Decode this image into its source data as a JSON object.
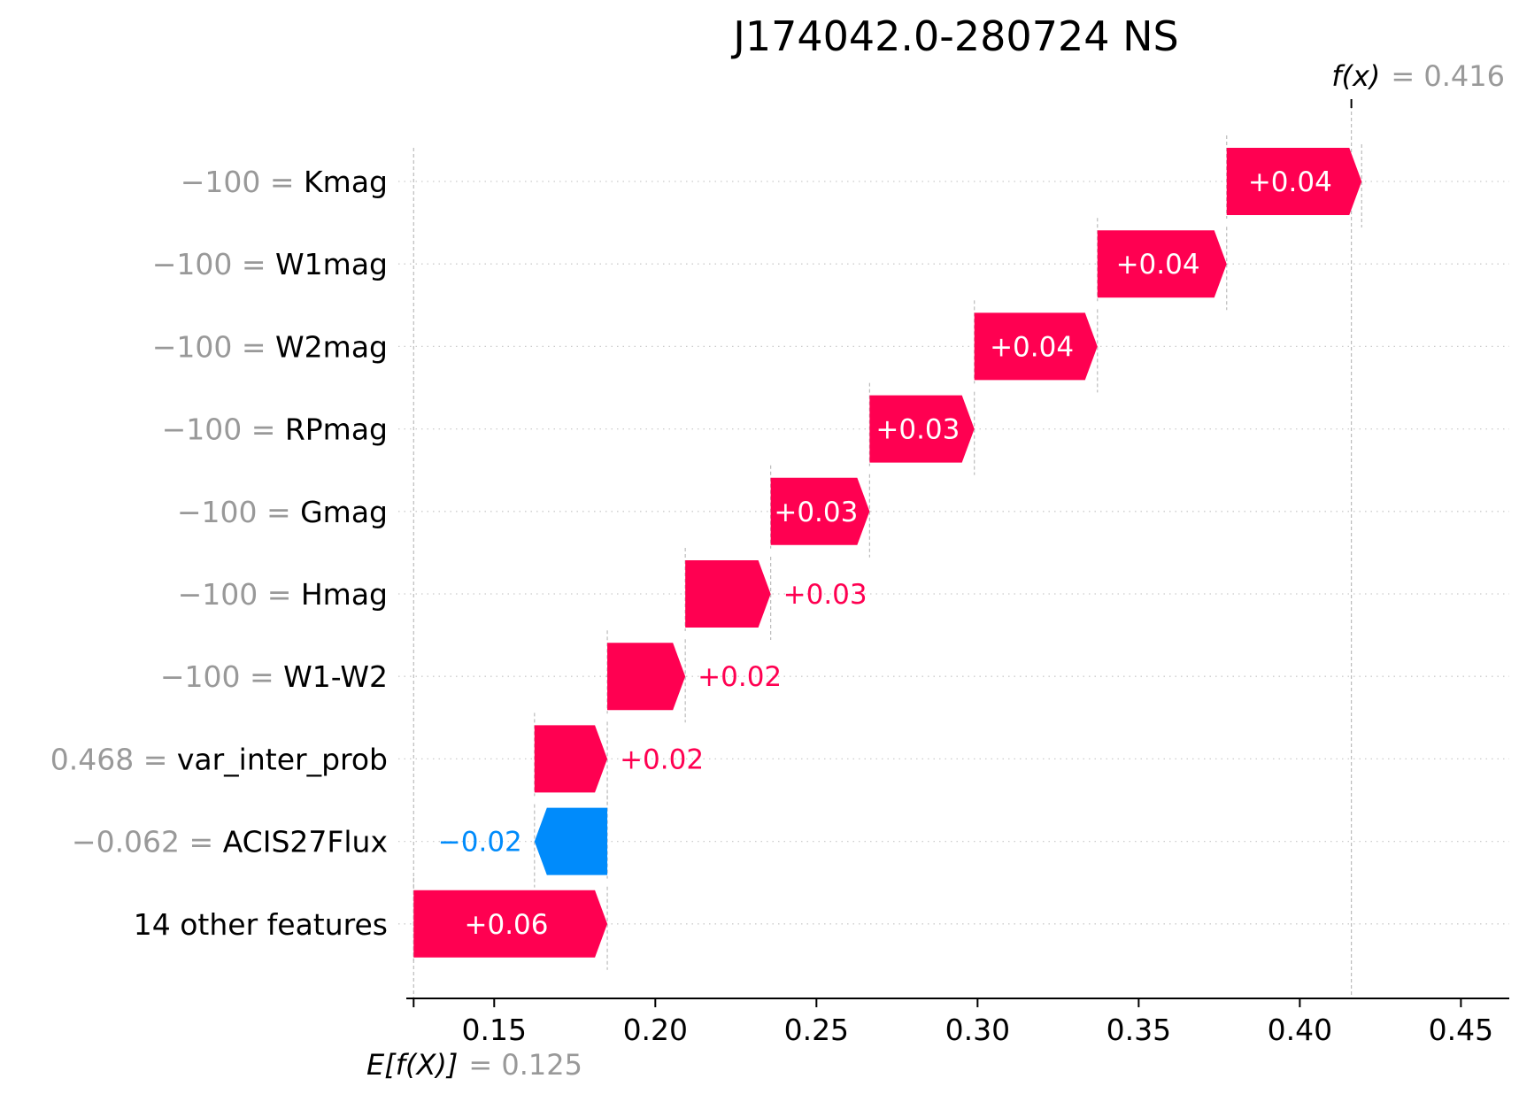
{
  "chart_data": {
    "type": "waterfall",
    "title": "J174042.0-280724 NS",
    "base_value": 0.125,
    "output_value": 0.416,
    "base_label": "E[f(X)]",
    "base_value_label": "= 0.125",
    "output_label": "f(x)",
    "output_value_label": "= 0.416",
    "xlim": [
      0.123,
      0.465
    ],
    "xticks": [
      0.15,
      0.2,
      0.25,
      0.3,
      0.35,
      0.4,
      0.45
    ],
    "xtick_labels": [
      "0.15",
      "0.20",
      "0.25",
      "0.30",
      "0.35",
      "0.40",
      "0.45"
    ],
    "grid": "horizontal dotted row lines",
    "colors": {
      "positive": "#ff0051",
      "negative": "#008bfb",
      "muted": "#999999"
    },
    "features": [
      {
        "value": "−100",
        "name": "Kmag",
        "shap": 0.0419,
        "label": "+0.04"
      },
      {
        "value": "−100",
        "name": "W1mag",
        "shap": 0.0401,
        "label": "+0.04"
      },
      {
        "value": "−100",
        "name": "W2mag",
        "shap": 0.0382,
        "label": "+0.04"
      },
      {
        "value": "−100",
        "name": "RPmag",
        "shap": 0.0325,
        "label": "+0.03"
      },
      {
        "value": "−100",
        "name": "Gmag",
        "shap": 0.0307,
        "label": "+0.03"
      },
      {
        "value": "−100",
        "name": "Hmag",
        "shap": 0.0265,
        "label": "+0.03"
      },
      {
        "value": "−100",
        "name": "W1-W2",
        "shap": 0.0242,
        "label": "+0.02"
      },
      {
        "value": "0.468",
        "name": "var_inter_prob",
        "shap": 0.0226,
        "label": "+0.02"
      },
      {
        "value": "−0.062",
        "name": "ACIS27Flux",
        "shap": -0.0226,
        "label": "−0.02"
      },
      {
        "value": "",
        "name": "14 other features",
        "shap": 0.0601,
        "label": "+0.06"
      }
    ]
  }
}
